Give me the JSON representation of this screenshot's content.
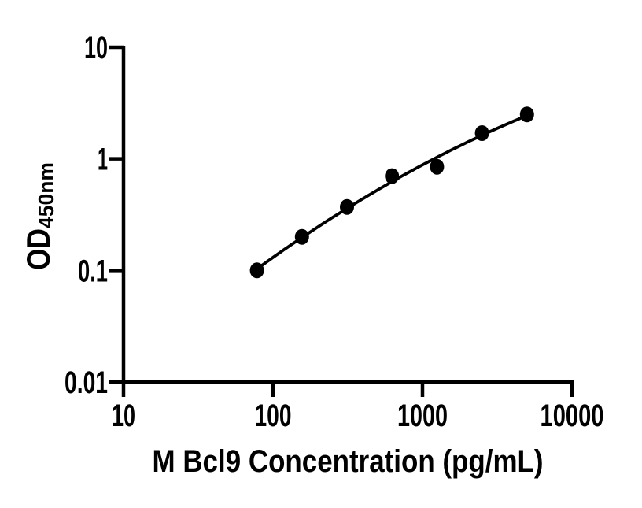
{
  "canvas": {
    "background_color": "#ffffff",
    "ink_color": "#000000"
  },
  "chart_data": {
    "type": "scatter",
    "xlabel": "M Bcl9 Concentration (pg/mL)",
    "ylabel": "OD",
    "ylabel_subscript": "450nm",
    "x_scale": "log10",
    "y_scale": "log10",
    "xlim": [
      10,
      10000
    ],
    "ylim": [
      0.01,
      10
    ],
    "xticks": [
      10,
      100,
      1000,
      10000
    ],
    "xtick_labels": [
      "10",
      "100",
      "1000",
      "10000"
    ],
    "yticks": [
      0.01,
      0.1,
      1,
      10
    ],
    "ytick_labels": [
      "0.01",
      "0.1",
      "1",
      "10"
    ],
    "grid": false,
    "legend": "none",
    "x": [
      78.125,
      156.25,
      312.5,
      625,
      1250,
      2500,
      5000
    ],
    "y": [
      0.1,
      0.2,
      0.37,
      0.7,
      0.85,
      1.7,
      2.5
    ],
    "marker": {
      "shape": "filled-circle",
      "color": "#000000"
    },
    "fit_line": {
      "style": "smooth-fitted-curve",
      "color": "#000000"
    }
  }
}
